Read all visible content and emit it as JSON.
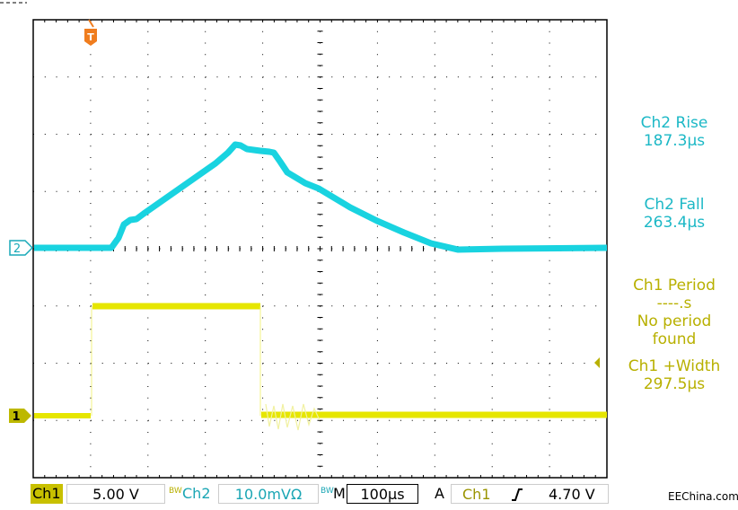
{
  "scope": {
    "trigger_marker": "T",
    "ch2_marker": "2",
    "ch1_marker": "1",
    "colors": {
      "ch1": "#e6e600",
      "ch2": "#19d3e0",
      "grid": "#000000"
    }
  },
  "measurements": {
    "ch2_rise_label": "Ch2 Rise",
    "ch2_rise_value": "187.3µs",
    "ch2_fall_label": "Ch2 Fall",
    "ch2_fall_value": "263.4µs",
    "ch1_period_label": "Ch1 Period",
    "ch1_period_value": "----.s",
    "ch1_period_note_1": "No period",
    "ch1_period_note_2": "found",
    "ch1_width_label": "Ch1 +Width",
    "ch1_width_value": "297.5µs"
  },
  "status": {
    "ch1_label": "Ch1",
    "ch1_scale": "5.00 V",
    "bw_mark": "BW",
    "ch2_label": "Ch2",
    "ch2_scale": "10.0mVΩ",
    "bw_mark2": "BW",
    "timebase_prefix": "M",
    "timebase": "100µs",
    "trigger_mode": "A",
    "trigger_source": "Ch1",
    "trigger_slope_icon": "rising-edge-icon",
    "trigger_level": "4.70 V"
  },
  "watermark": "EEChina.com"
}
